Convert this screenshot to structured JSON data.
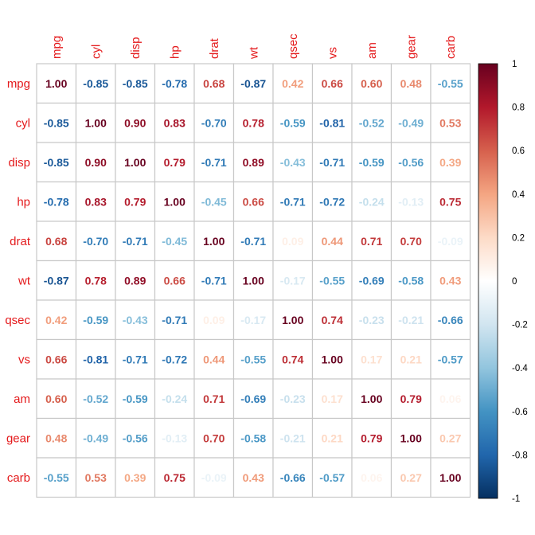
{
  "chart_data": {
    "type": "heatmap",
    "title": "",
    "variables": [
      "mpg",
      "cyl",
      "disp",
      "hp",
      "drat",
      "wt",
      "qsec",
      "vs",
      "am",
      "gear",
      "carb"
    ],
    "matrix": [
      [
        1.0,
        -0.85,
        -0.85,
        -0.78,
        0.68,
        -0.87,
        0.42,
        0.66,
        0.6,
        0.48,
        -0.55
      ],
      [
        -0.85,
        1.0,
        0.9,
        0.83,
        -0.7,
        0.78,
        -0.59,
        -0.81,
        -0.52,
        -0.49,
        0.53
      ],
      [
        -0.85,
        0.9,
        1.0,
        0.79,
        -0.71,
        0.89,
        -0.43,
        -0.71,
        -0.59,
        -0.56,
        0.39
      ],
      [
        -0.78,
        0.83,
        0.79,
        1.0,
        -0.45,
        0.66,
        -0.71,
        -0.72,
        -0.24,
        -0.13,
        0.75
      ],
      [
        0.68,
        -0.7,
        -0.71,
        -0.45,
        1.0,
        -0.71,
        0.09,
        0.44,
        0.71,
        0.7,
        -0.09
      ],
      [
        -0.87,
        0.78,
        0.89,
        0.66,
        -0.71,
        1.0,
        -0.17,
        -0.55,
        -0.69,
        -0.58,
        0.43
      ],
      [
        0.42,
        -0.59,
        -0.43,
        -0.71,
        0.09,
        -0.17,
        1.0,
        0.74,
        -0.23,
        -0.21,
        -0.66
      ],
      [
        0.66,
        -0.81,
        -0.71,
        -0.72,
        0.44,
        -0.55,
        0.74,
        1.0,
        0.17,
        0.21,
        -0.57
      ],
      [
        0.6,
        -0.52,
        -0.59,
        -0.24,
        0.71,
        -0.69,
        -0.23,
        0.17,
        1.0,
        0.79,
        0.06
      ],
      [
        0.48,
        -0.49,
        -0.56,
        -0.13,
        0.7,
        -0.58,
        -0.21,
        0.21,
        0.79,
        1.0,
        0.27
      ],
      [
        -0.55,
        0.53,
        0.39,
        0.75,
        -0.09,
        0.43,
        -0.66,
        -0.57,
        0.06,
        0.27,
        1.0
      ]
    ],
    "colorbar": {
      "range": [
        -1,
        1
      ],
      "ticks": [
        1,
        0.8,
        0.6,
        0.4,
        0.2,
        0,
        -0.2,
        -0.4,
        -0.6,
        -0.8,
        -1
      ],
      "tick_labels": [
        "1",
        "0.8",
        "0.6",
        "0.4",
        "0.2",
        "0",
        "-0.2",
        "-0.4",
        "-0.6",
        "-0.8",
        "-1"
      ],
      "colors": [
        "#67001F",
        "#B2182B",
        "#D6604D",
        "#F4A582",
        "#FDDBC7",
        "#FFFFFF",
        "#D1E5F0",
        "#92C5DE",
        "#4393C3",
        "#2166AC",
        "#053061"
      ]
    },
    "label_color": "#e41a1c",
    "grid_color": "#c8c8c8"
  }
}
